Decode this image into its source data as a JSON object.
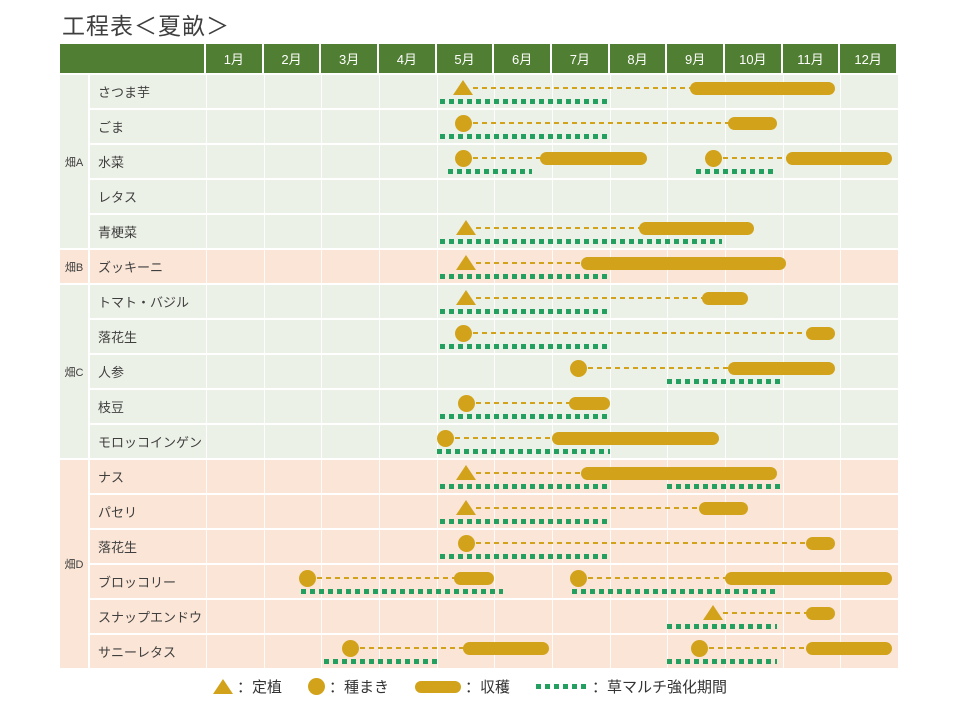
{
  "title": "工程表＜夏畝＞",
  "header": {
    "months": [
      "1月",
      "2月",
      "3月",
      "4月",
      "5月",
      "6月",
      "7月",
      "8月",
      "9月",
      "10月",
      "11月",
      "12月"
    ]
  },
  "legend": {
    "items": [
      {
        "icon": "transplant-triangle-icon",
        "label": "：定植"
      },
      {
        "icon": "sowing-circle-icon",
        "label": "：種まき"
      },
      {
        "icon": "harvest-bar-icon",
        "label": "：収穫"
      },
      {
        "icon": "mulch-dotted-icon",
        "label": "：草マルチ強化期間"
      }
    ]
  },
  "colors": {
    "header_green": "#507E32",
    "row_green": "#ECF1E7",
    "row_orange": "#FBE5D6",
    "marker_gold": "#D2A31A",
    "mulch_green": "#23A05F",
    "grid_white": "#FFFFFF",
    "text_dark": "#3F3F3F"
  },
  "chart_data": {
    "type": "bar",
    "variant": "gantt-planting-schedule",
    "title": "工程表＜夏畝＞",
    "x_axis": {
      "unit": "month",
      "range": [
        1,
        13
      ],
      "ticks": [
        "1月",
        "2月",
        "3月",
        "4月",
        "5月",
        "6月",
        "7月",
        "8月",
        "9月",
        "10月",
        "11月",
        "12月"
      ]
    },
    "marker_meanings": {
      "triangle": "定植",
      "circle": "種まき",
      "bar": "収穫",
      "dotted": "草マルチ強化期間"
    },
    "groups": [
      {
        "field": "畑A",
        "tint": "green",
        "crops": [
          {
            "name": "さつま芋",
            "plantings": [
              {
                "marker": "triangle",
                "marker_month": 5.45,
                "harvest": [
                  9.4,
                  11.9
                ],
                "mulch": [
                  [
                    5.05,
                    8.0
                  ]
                ]
              }
            ]
          },
          {
            "name": "ごま",
            "plantings": [
              {
                "marker": "circle",
                "marker_month": 5.45,
                "harvest": [
                  10.05,
                  10.9
                ],
                "mulch": [
                  [
                    5.05,
                    8.0
                  ]
                ]
              }
            ]
          },
          {
            "name": "水菜",
            "plantings": [
              {
                "marker": "circle",
                "marker_month": 5.45,
                "harvest": [
                  6.8,
                  8.65
                ],
                "mulch": [
                  [
                    5.2,
                    6.65
                  ]
                ]
              },
              {
                "marker": "circle",
                "marker_month": 9.8,
                "harvest": [
                  11.05,
                  12.9
                ],
                "mulch": [
                  [
                    9.5,
                    10.9
                  ]
                ]
              }
            ]
          },
          {
            "name": "レタス",
            "plantings": []
          },
          {
            "name": "青梗菜",
            "plantings": [
              {
                "marker": "triangle",
                "marker_month": 5.5,
                "harvest": [
                  8.5,
                  10.5
                ],
                "mulch": [
                  [
                    5.05,
                    9.95
                  ]
                ]
              }
            ]
          }
        ]
      },
      {
        "field": "畑B",
        "tint": "orange",
        "crops": [
          {
            "name": "ズッキーニ",
            "plantings": [
              {
                "marker": "triangle",
                "marker_month": 5.5,
                "harvest": [
                  7.5,
                  11.05
                ],
                "mulch": [
                  [
                    5.05,
                    8.0
                  ]
                ]
              }
            ]
          }
        ]
      },
      {
        "field": "畑C",
        "tint": "green",
        "crops": [
          {
            "name": "トマト・バジル",
            "plantings": [
              {
                "marker": "triangle",
                "marker_month": 5.5,
                "harvest": [
                  9.6,
                  10.4
                ],
                "mulch": [
                  [
                    5.05,
                    8.0
                  ]
                ]
              }
            ]
          },
          {
            "name": "落花生",
            "plantings": [
              {
                "marker": "circle",
                "marker_month": 5.45,
                "harvest": [
                  11.4,
                  11.9
                ],
                "mulch": [
                  [
                    5.05,
                    8.0
                  ]
                ]
              }
            ]
          },
          {
            "name": "人参",
            "plantings": [
              {
                "marker": "circle",
                "marker_month": 7.45,
                "harvest": [
                  10.05,
                  11.9
                ],
                "mulch": [
                  [
                    9.0,
                    10.95
                  ]
                ]
              }
            ]
          },
          {
            "name": "枝豆",
            "plantings": [
              {
                "marker": "circle",
                "marker_month": 5.5,
                "harvest": [
                  7.3,
                  8.0
                ],
                "mulch": [
                  [
                    5.05,
                    8.0
                  ]
                ]
              }
            ]
          },
          {
            "name": "モロッコインゲン",
            "plantings": [
              {
                "marker": "circle",
                "marker_month": 5.15,
                "harvest": [
                  7.0,
                  9.9
                ],
                "mulch": [
                  [
                    5.0,
                    8.0
                  ]
                ]
              }
            ]
          }
        ]
      },
      {
        "field": "畑D",
        "tint": "orange",
        "crops": [
          {
            "name": "ナス",
            "plantings": [
              {
                "marker": "triangle",
                "marker_month": 5.5,
                "harvest": [
                  7.5,
                  10.9
                ],
                "mulch": [
                  [
                    5.05,
                    8.0
                  ],
                  [
                    9.0,
                    11.0
                  ]
                ]
              }
            ]
          },
          {
            "name": "パセリ",
            "plantings": [
              {
                "marker": "triangle",
                "marker_month": 5.5,
                "harvest": [
                  9.55,
                  10.4
                ],
                "mulch": [
                  [
                    5.05,
                    8.0
                  ]
                ]
              }
            ]
          },
          {
            "name": "落花生",
            "plantings": [
              {
                "marker": "circle",
                "marker_month": 5.5,
                "harvest": [
                  11.4,
                  11.9
                ],
                "mulch": [
                  [
                    5.05,
                    8.0
                  ]
                ]
              }
            ]
          },
          {
            "name": "ブロッコリー",
            "plantings": [
              {
                "marker": "circle",
                "marker_month": 2.75,
                "harvest": [
                  5.3,
                  6.0
                ],
                "mulch": [
                  [
                    2.65,
                    6.15
                  ]
                ]
              },
              {
                "marker": "circle",
                "marker_month": 7.45,
                "harvest": [
                  10.0,
                  12.9
                ],
                "mulch": [
                  [
                    7.35,
                    10.9
                  ]
                ]
              }
            ]
          },
          {
            "name": "スナップエンドウ",
            "plantings": [
              {
                "marker": "triangle",
                "marker_month": 9.8,
                "harvest": [
                  11.4,
                  11.9
                ],
                "mulch": [
                  [
                    9.0,
                    10.9
                  ]
                ]
              }
            ]
          },
          {
            "name": "サニーレタス",
            "plantings": [
              {
                "marker": "circle",
                "marker_month": 3.5,
                "harvest": [
                  5.45,
                  6.95
                ],
                "mulch": [
                  [
                    3.05,
                    5.0
                  ]
                ]
              },
              {
                "marker": "circle",
                "marker_month": 9.55,
                "harvest": [
                  11.4,
                  12.9
                ],
                "mulch": [
                  [
                    9.0,
                    10.9
                  ]
                ]
              }
            ]
          }
        ]
      }
    ]
  }
}
